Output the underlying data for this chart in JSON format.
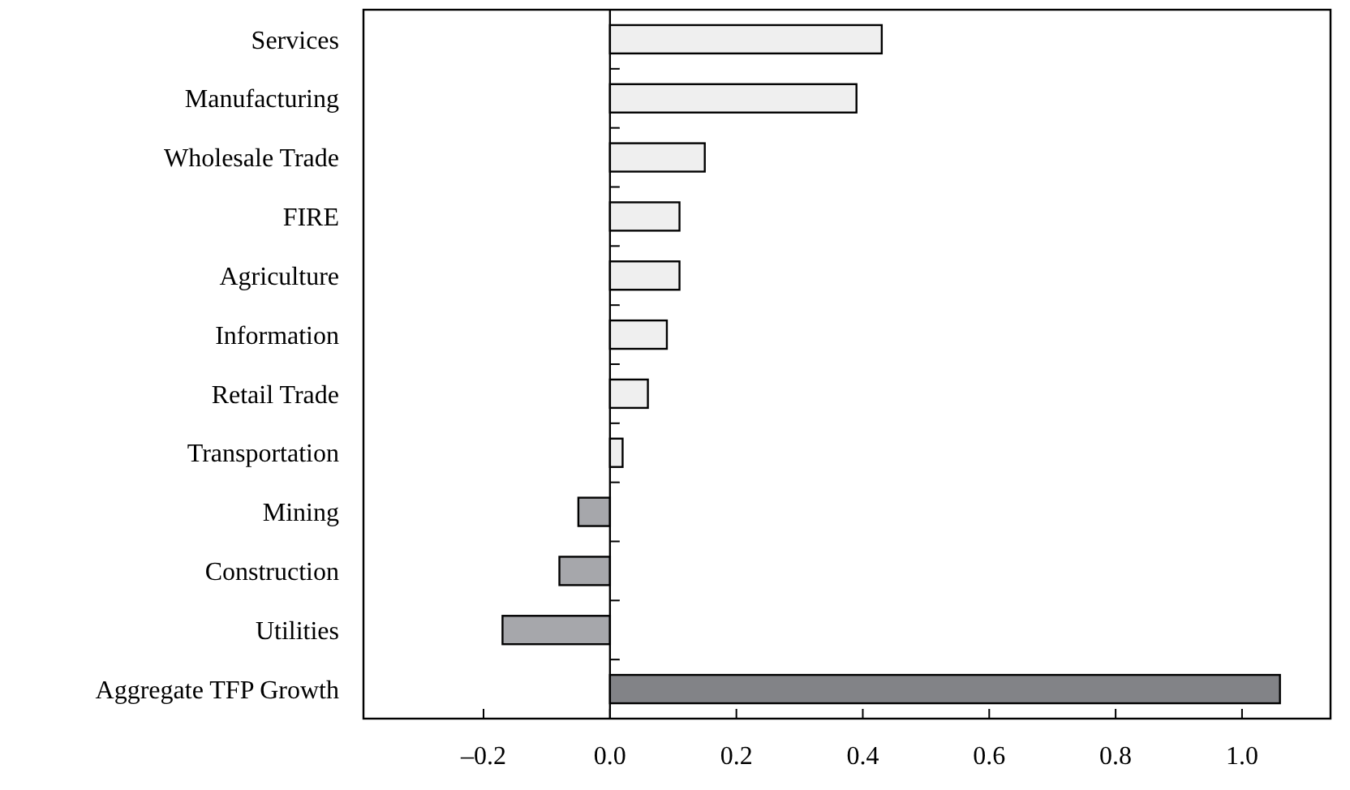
{
  "chart_data": {
    "type": "bar",
    "orientation": "horizontal",
    "categories": [
      "Services",
      "Manufacturing",
      "Wholesale Trade",
      "FIRE",
      "Agriculture",
      "Information",
      "Retail Trade",
      "Transportation",
      "Mining",
      "Construction",
      "Utilities",
      "Aggregate TFP Growth"
    ],
    "values": [
      0.43,
      0.39,
      0.15,
      0.11,
      0.11,
      0.09,
      0.06,
      0.02,
      -0.05,
      -0.08,
      -0.17,
      1.06
    ],
    "colors": [
      "#efefef",
      "#efefef",
      "#efefef",
      "#efefef",
      "#efefef",
      "#efefef",
      "#efefef",
      "#efefef",
      "#a6a7ab",
      "#a6a7ab",
      "#a6a7ab",
      "#828387"
    ],
    "xlim": [
      -0.39,
      1.14
    ],
    "xticks": [
      {
        "value": -0.2,
        "label": "–0.2"
      },
      {
        "value": 0,
        "label": "0.0"
      },
      {
        "value": 0.2,
        "label": "0.2"
      },
      {
        "value": 0.4,
        "label": "0.4"
      },
      {
        "value": 0.6,
        "label": "0.6"
      },
      {
        "value": 0.8,
        "label": "0.8"
      },
      {
        "value": 1,
        "label": "1.0"
      }
    ],
    "ref_lines": [
      {
        "axis": "x",
        "value": 0
      }
    ]
  }
}
